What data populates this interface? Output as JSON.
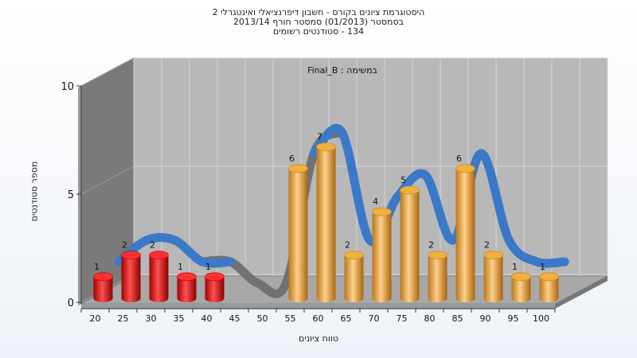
{
  "chart_data": {
    "type": "bar",
    "title_lines": [
      "היסטוגרמת ציונים בקורס - חשבון דיפרנציאלי ואינטגרלי 2",
      "בסמסטר (01/2013) סמסטר חורף 2013/14",
      "134 - סטודנטים רשומים"
    ],
    "subtitle": "במשימה : Final_B",
    "xlabel": "טווח ציונים",
    "ylabel": "מספר סטודנטים",
    "categories": [
      "20",
      "25",
      "30",
      "35",
      "40",
      "45",
      "50",
      "55",
      "60",
      "65",
      "70",
      "75",
      "80",
      "85",
      "90",
      "95",
      "100"
    ],
    "values": [
      1,
      2,
      2,
      1,
      1,
      0,
      0,
      6,
      7,
      2,
      4,
      5,
      2,
      6,
      2,
      1,
      1
    ],
    "bar_colors": [
      "#e02020",
      "#e02020",
      "#e02020",
      "#e02020",
      "#e02020",
      null,
      null,
      "#e8a030",
      "#e8a030",
      "#e8a030",
      "#e8a030",
      "#e8a030",
      "#e8a030",
      "#e8a030",
      "#e8a030",
      "#e8a030",
      "#e8a030"
    ],
    "ylim": [
      0,
      10
    ],
    "yticks": [
      0,
      5,
      10
    ],
    "grid": true,
    "trend_colors": {
      "blue": "#3a78c8",
      "gray": "#6e6e6e"
    },
    "wall_colors": {
      "back": "#b8b8b8",
      "side": "#7a7a7a",
      "floor": "#a8a8a8"
    }
  }
}
